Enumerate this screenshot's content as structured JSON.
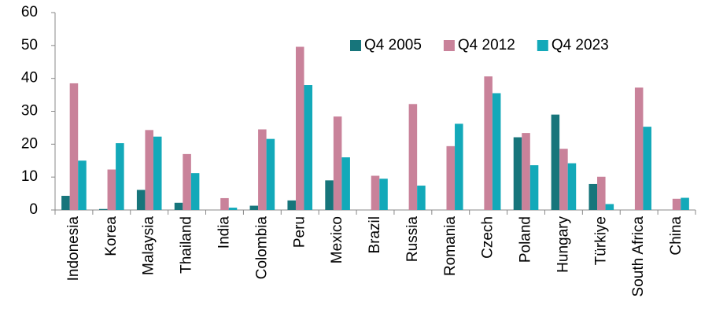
{
  "chart_data": {
    "type": "bar",
    "categories": [
      "Indonesia",
      "Korea",
      "Malaysia",
      "Thailand",
      "India",
      "Colombia",
      "Peru",
      "Mexico",
      "Brazil",
      "Russia",
      "Romania",
      "Czech",
      "Poland",
      "Hungary",
      "Türkiye",
      "South Africa",
      "China"
    ],
    "series": [
      {
        "name": "Q4 2005",
        "color": "#17757b",
        "values": [
          4.3,
          0.3,
          6.1,
          2.2,
          0,
          1.3,
          2.9,
          9,
          0,
          0,
          0,
          0,
          22.1,
          29,
          7.9,
          0,
          0
        ]
      },
      {
        "name": "Q4 2012",
        "color": "#c9829a",
        "values": [
          38.5,
          12.3,
          24.3,
          17,
          3.6,
          24.5,
          49.6,
          28.4,
          10.4,
          32.2,
          19.4,
          40.6,
          23.4,
          18.6,
          10.1,
          37.2,
          3.4
        ]
      },
      {
        "name": "Q4 2023",
        "color": "#13a9b9",
        "values": [
          15,
          20.3,
          22.3,
          11.2,
          0.7,
          21.6,
          38,
          16,
          9.5,
          7.4,
          26.2,
          35.5,
          13.6,
          14.2,
          1.8,
          25.3,
          3.7
        ]
      }
    ],
    "ylim": [
      0,
      60
    ],
    "yticks": [
      0,
      10,
      20,
      30,
      40,
      50,
      60
    ],
    "grid": false,
    "legend": "upper right"
  }
}
